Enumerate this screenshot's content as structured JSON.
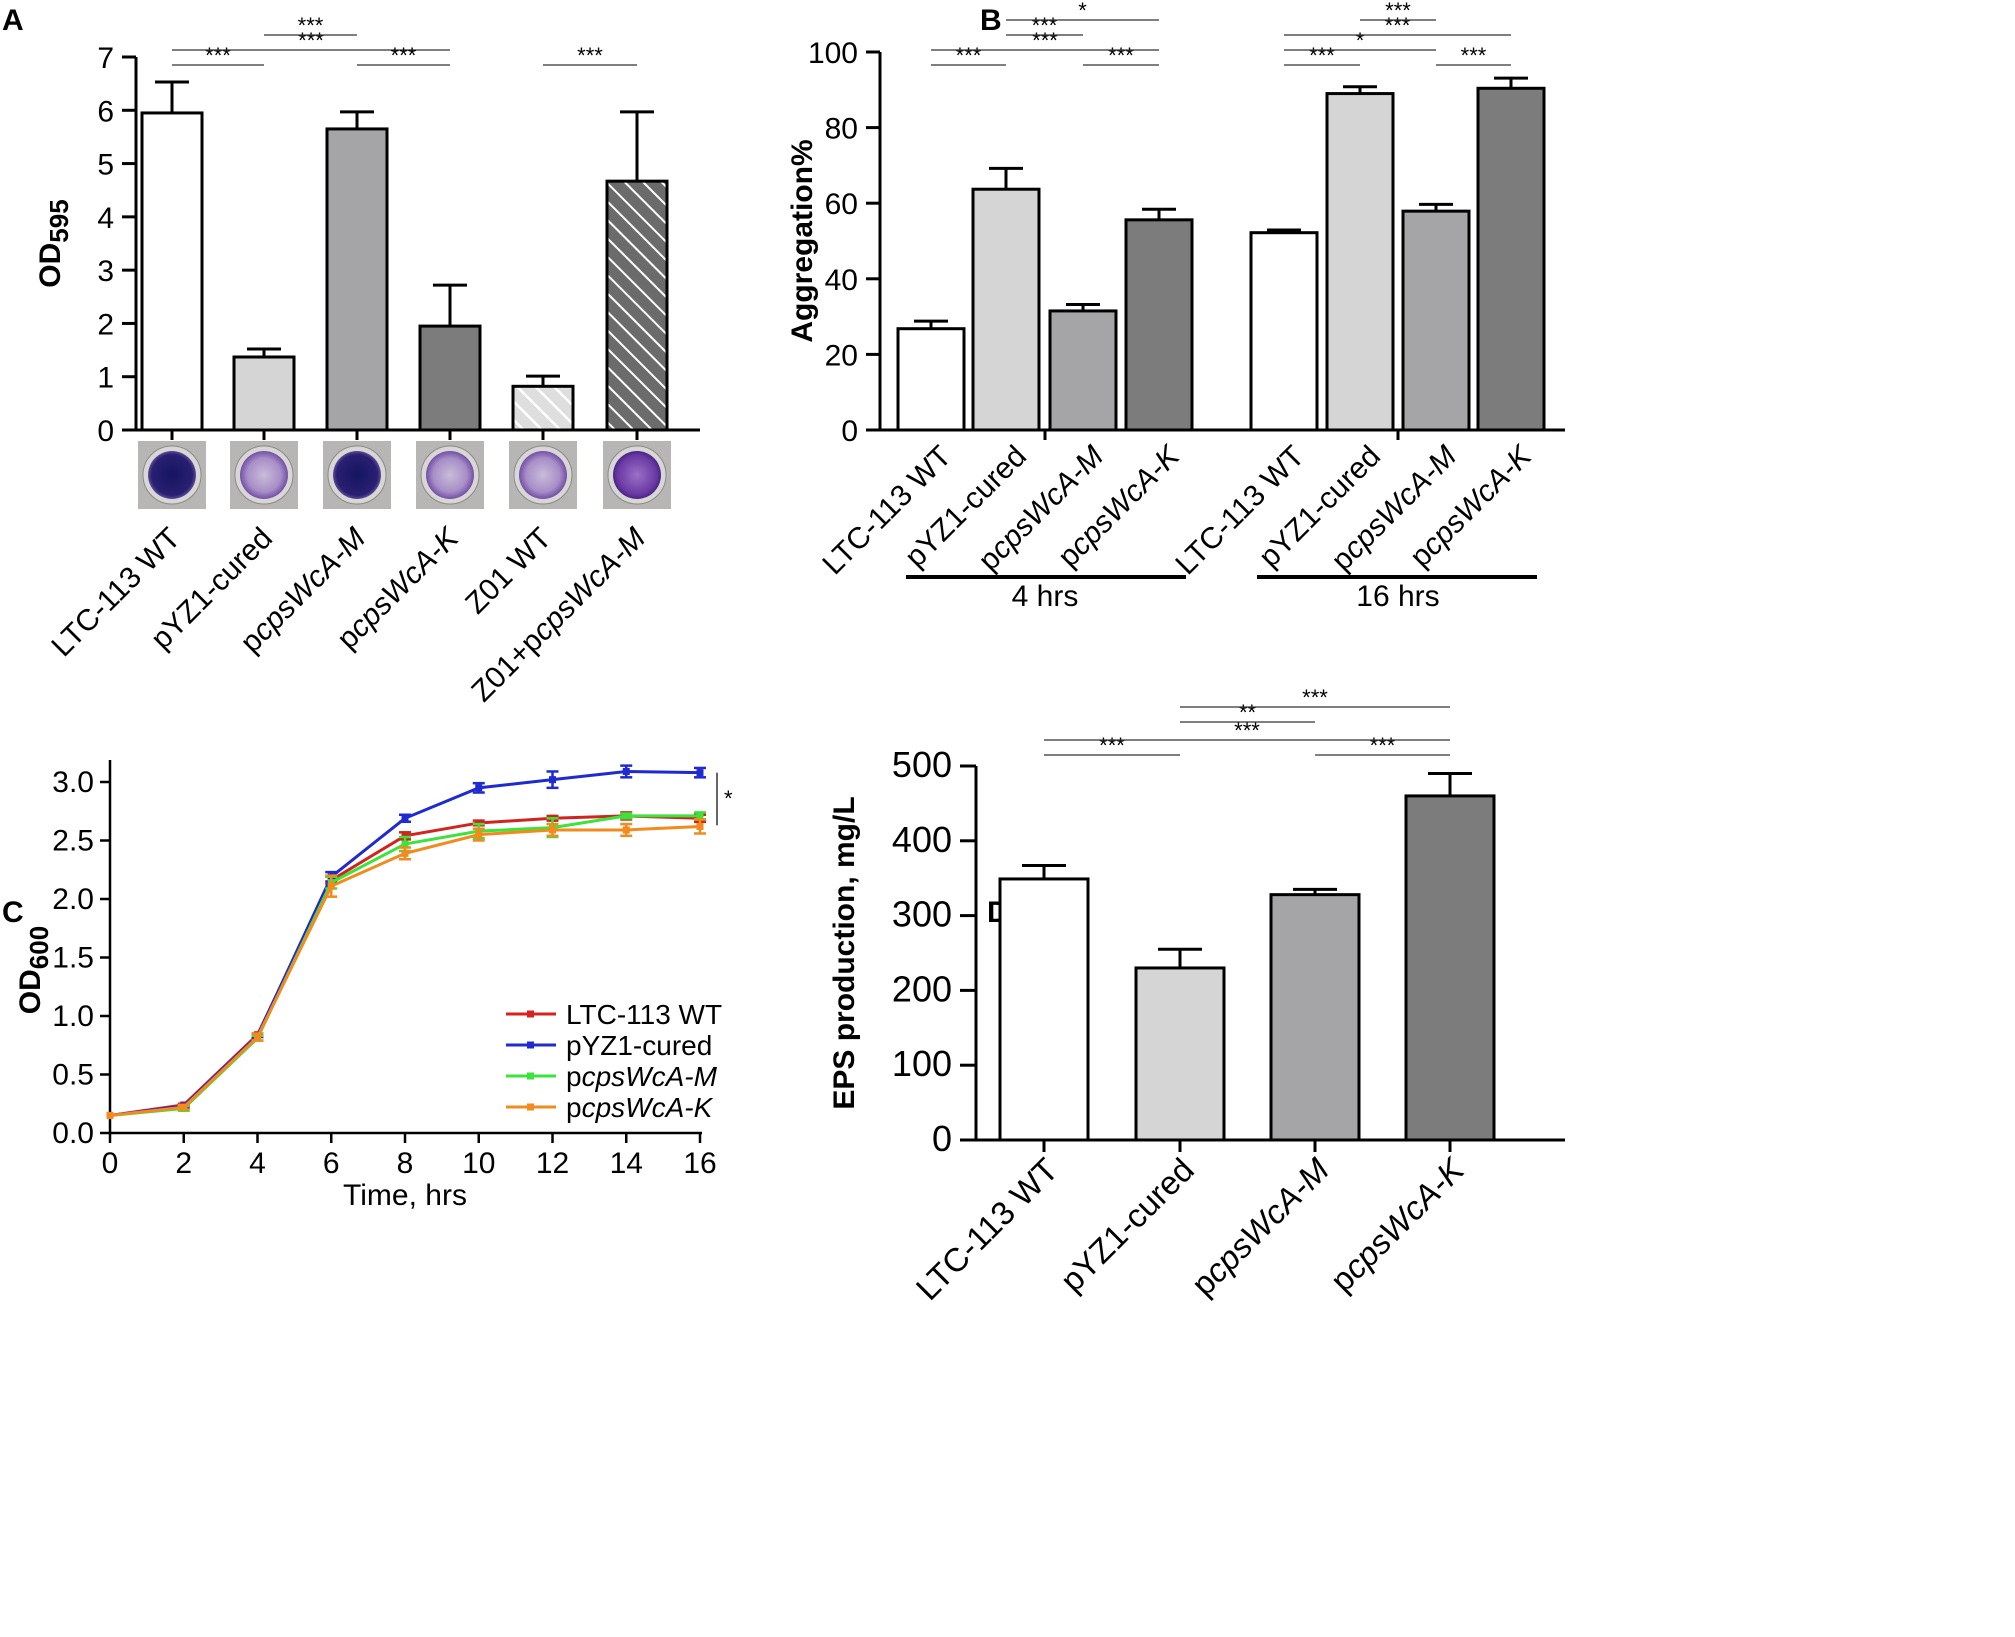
{
  "colors": {
    "white": "#ffffff",
    "light": "#d5d5d6",
    "mid": "#a5a5a8",
    "dark": "#7c7c7d",
    "red": "#d2231f",
    "blue": "#1f2bd0",
    "green": "#3be33b",
    "orange": "#f28a1e"
  },
  "chart_data": [
    {
      "panel": "A",
      "type": "bar",
      "ylabel_main": "OD",
      "ylabel_sub": "595",
      "ylim": [
        0,
        7
      ],
      "yticks": [
        "0",
        "1",
        "2",
        "3",
        "4",
        "5",
        "6",
        "7"
      ],
      "categories": [
        "LTC-113 WT",
        "pYZ1-cured",
        "pcpsWcA-M",
        "pcpsWcA-K",
        "Z01 WT",
        "Z01+pcpsWcA-M"
      ],
      "category_parts": [
        [
          [
            "LTC-113 WT",
            false
          ]
        ],
        [
          [
            "pYZ1-cured",
            false
          ]
        ],
        [
          [
            "p",
            false
          ],
          [
            "cpsWcA-M",
            true
          ]
        ],
        [
          [
            "p",
            false
          ],
          [
            "cpsWcA-K",
            true
          ]
        ],
        [
          [
            "Z01 WT",
            false
          ]
        ],
        [
          [
            "Z01+p",
            false
          ],
          [
            "cpsWcA-M",
            true
          ]
        ]
      ],
      "values": [
        5.95,
        1.37,
        5.65,
        1.95,
        0.82,
        4.67
      ],
      "errors": [
        0.58,
        0.15,
        0.32,
        0.77,
        0.19,
        1.3
      ],
      "fills": [
        "white",
        "light",
        "mid",
        "dark",
        "light-hatch",
        "dark-hatch"
      ],
      "well_images": [
        "biofilm-well",
        "biofilm-well",
        "biofilm-well",
        "biofilm-well",
        "biofilm-well",
        "biofilm-well"
      ],
      "significance": [
        {
          "from": 0,
          "to": 1,
          "label": "***"
        },
        {
          "from": 0,
          "to": 3,
          "label": "***"
        },
        {
          "from": 1,
          "to": 2,
          "label": "***"
        },
        {
          "from": 2,
          "to": 3,
          "label": "***"
        },
        {
          "from": 4,
          "to": 5,
          "label": "***"
        }
      ]
    },
    {
      "panel": "B",
      "type": "bar",
      "ylabel": "Aggregation%",
      "ylim": [
        0,
        100
      ],
      "yticks": [
        "0",
        "20",
        "40",
        "60",
        "80",
        "100"
      ],
      "groups": [
        "4 hrs",
        "16 hrs"
      ],
      "categories": [
        "LTC-113 WT",
        "pYZ1-cured",
        "pcpsWcA-M",
        "pcpsWcA-K",
        "LTC-113 WT",
        "pYZ1-cured",
        "pcpsWcA-M",
        "pcpsWcA-K"
      ],
      "category_parts": [
        [
          [
            "LTC-113 WT",
            false
          ]
        ],
        [
          [
            "pYZ1-cured",
            false
          ]
        ],
        [
          [
            "p",
            false
          ],
          [
            "cpsWcA-M",
            true
          ]
        ],
        [
          [
            "p",
            false
          ],
          [
            "cpsWcA-K",
            true
          ]
        ],
        [
          [
            "LTC-113 WT",
            false
          ]
        ],
        [
          [
            "pYZ1-cured",
            false
          ]
        ],
        [
          [
            "p",
            false
          ],
          [
            "cpsWcA-M",
            true
          ]
        ],
        [
          [
            "p",
            false
          ],
          [
            "cpsWcA-K",
            true
          ]
        ]
      ],
      "values": [
        26.8,
        63.7,
        31.5,
        55.6,
        52.2,
        89.0,
        57.9,
        90.4
      ],
      "errors": [
        2.0,
        5.5,
        1.7,
        2.8,
        0.7,
        1.8,
        1.8,
        2.7
      ],
      "fills": [
        "white",
        "light",
        "mid",
        "dark",
        "white",
        "light",
        "mid",
        "dark"
      ],
      "significance": [
        {
          "from": 0,
          "to": 1,
          "label": "***"
        },
        {
          "from": 2,
          "to": 3,
          "label": "***"
        },
        {
          "from": 0,
          "to": 3,
          "label": "***"
        },
        {
          "from": 1,
          "to": 2,
          "label": "***"
        },
        {
          "from": 1,
          "to": 3,
          "label": "*"
        },
        {
          "from": 4,
          "to": 5,
          "label": "***"
        },
        {
          "from": 6,
          "to": 7,
          "label": "***"
        },
        {
          "from": 4,
          "to": 6,
          "label": "*"
        },
        {
          "from": 4,
          "to": 7,
          "label": "***"
        },
        {
          "from": 5,
          "to": 6,
          "label": "***"
        }
      ]
    },
    {
      "panel": "C",
      "type": "line",
      "xlabel": "Time, hrs",
      "ylabel_main": "OD",
      "ylabel_sub": "600",
      "xlim": [
        0,
        16
      ],
      "ylim": [
        0,
        3.2
      ],
      "xticks": [
        "0",
        "2",
        "4",
        "6",
        "8",
        "10",
        "12",
        "14",
        "16"
      ],
      "yticks": [
        "0.0",
        "0.5",
        "1.0",
        "1.5",
        "2.0",
        "2.5",
        "3.0"
      ],
      "x": [
        0,
        2,
        4,
        6,
        8,
        10,
        12,
        14,
        16
      ],
      "series": [
        {
          "name_parts": [
            [
              "LTC-113 WT",
              false
            ]
          ],
          "color": "red",
          "values": [
            0.15,
            0.24,
            0.84,
            2.16,
            2.54,
            2.65,
            2.69,
            2.71,
            2.69
          ],
          "errors": [
            0.0,
            0.01,
            0.01,
            0.03,
            0.03,
            0.02,
            0.02,
            0.03,
            0.03
          ]
        },
        {
          "name_parts": [
            [
              "pYZ1-cured",
              false
            ]
          ],
          "color": "blue",
          "values": [
            0.15,
            0.23,
            0.83,
            2.19,
            2.69,
            2.95,
            3.02,
            3.09,
            3.08
          ],
          "errors": [
            0.0,
            0.01,
            0.01,
            0.04,
            0.03,
            0.04,
            0.07,
            0.05,
            0.04
          ]
        },
        {
          "name_parts": [
            [
              "p",
              false
            ],
            [
              "cpsWcA-M",
              true
            ]
          ],
          "color": "green",
          "values": [
            0.15,
            0.21,
            0.81,
            2.14,
            2.47,
            2.58,
            2.61,
            2.71,
            2.71
          ],
          "errors": [
            0.0,
            0.02,
            0.02,
            0.05,
            0.06,
            0.06,
            0.08,
            0.02,
            0.03
          ]
        },
        {
          "name_parts": [
            [
              "p",
              false
            ],
            [
              "cpsWcA-K",
              true
            ]
          ],
          "color": "orange",
          "values": [
            0.15,
            0.22,
            0.82,
            2.11,
            2.39,
            2.55,
            2.59,
            2.59,
            2.62
          ],
          "errors": [
            0.0,
            0.02,
            0.03,
            0.09,
            0.05,
            0.05,
            0.05,
            0.05,
            0.06
          ]
        }
      ],
      "significance": [
        {
          "label": "*",
          "y_from": 2.63,
          "y_to": 3.08
        }
      ]
    },
    {
      "panel": "D",
      "type": "bar",
      "ylabel": "EPS production, mg/L",
      "ylim": [
        0,
        500
      ],
      "yticks": [
        "0",
        "100",
        "200",
        "300",
        "400",
        "500"
      ],
      "categories": [
        "LTC-113 WT",
        "pYZ1-cured",
        "pcpsWcA-M",
        "pcpsWcA-K"
      ],
      "category_parts": [
        [
          [
            "LTC-113 WT",
            false
          ]
        ],
        [
          [
            "pYZ1-cured",
            false
          ]
        ],
        [
          [
            "p",
            false
          ],
          [
            "cpsWcA-M",
            true
          ]
        ],
        [
          [
            "p",
            false
          ],
          [
            "cpsWcA-K",
            true
          ]
        ]
      ],
      "values": [
        349,
        230,
        328,
        460
      ],
      "errors": [
        18,
        25,
        7,
        30
      ],
      "fills": [
        "white",
        "light",
        "mid",
        "dark"
      ],
      "significance": [
        {
          "from": 0,
          "to": 1,
          "label": "***"
        },
        {
          "from": 2,
          "to": 3,
          "label": "***"
        },
        {
          "from": 0,
          "to": 3,
          "label": "***"
        },
        {
          "from": 1,
          "to": 2,
          "label": "**"
        },
        {
          "from": 1,
          "to": 3,
          "label": "***"
        }
      ]
    }
  ]
}
